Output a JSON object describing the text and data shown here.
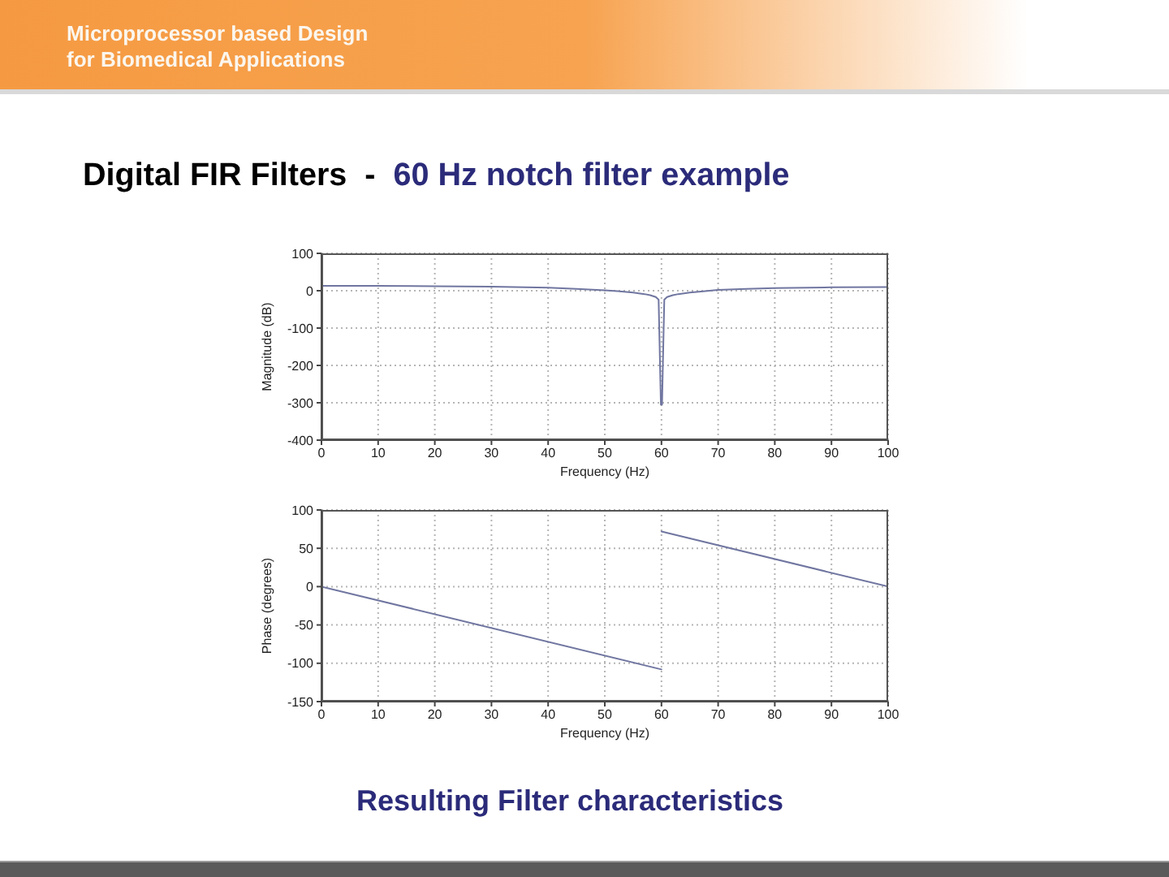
{
  "chart_data": [
    {
      "type": "line",
      "title": "Digital FIR Filters  -",
      "subtitle": "60 Hz notch filter example",
      "annotations": [
        "Microprocessor based Design for Biomedical Applications"
      ],
      "xlabel": "Frequency (Hz)",
      "ylabel": "Magnitude (dB)",
      "x": [
        0,
        10,
        20,
        30,
        40,
        45,
        50,
        53,
        55,
        57,
        58,
        59,
        59.5,
        59.9,
        60.1,
        60.5,
        61,
        62,
        63,
        65,
        67,
        70,
        75,
        80,
        90,
        100
      ],
      "series": [
        {
          "color": "#7076a0",
          "values": [
            13,
            13,
            12,
            11,
            8,
            5,
            1,
            -2,
            -5,
            -9,
            -12,
            -17,
            -24,
            -305,
            -305,
            -24,
            -17,
            -12,
            -9,
            -5,
            -2,
            2,
            5,
            7,
            9,
            10
          ]
        }
      ],
      "xlim": [
        0,
        100
      ],
      "xticks": [
        0,
        10,
        20,
        30,
        40,
        50,
        60,
        70,
        80,
        90,
        100
      ],
      "ylim": [
        -400,
        100
      ],
      "yticks": [
        -400,
        -300,
        -200,
        -100,
        0,
        100
      ],
      "grid": true,
      "marker": "none",
      "line_style": "solid"
    },
    {
      "type": "line",
      "annotations": [
        "Resulting Filter characteristics"
      ],
      "xlabel": "Frequency (Hz)",
      "ylabel": "Phase (degrees)",
      "series": [
        {
          "color": "#7076a0",
          "x": [
            0,
            60
          ],
          "values": [
            0,
            -108
          ]
        },
        {
          "color": "#7076a0",
          "x": [
            60,
            100
          ],
          "values": [
            72,
            0
          ]
        }
      ],
      "xlim": [
        0,
        100
      ],
      "xticks": [
        0,
        10,
        20,
        30,
        40,
        50,
        60,
        70,
        80,
        90,
        100
      ],
      "ylim": [
        -150,
        100
      ],
      "yticks": [
        -150,
        -100,
        -50,
        0,
        50,
        100
      ],
      "grid": true,
      "marker": "none",
      "line_style": "solid"
    }
  ]
}
